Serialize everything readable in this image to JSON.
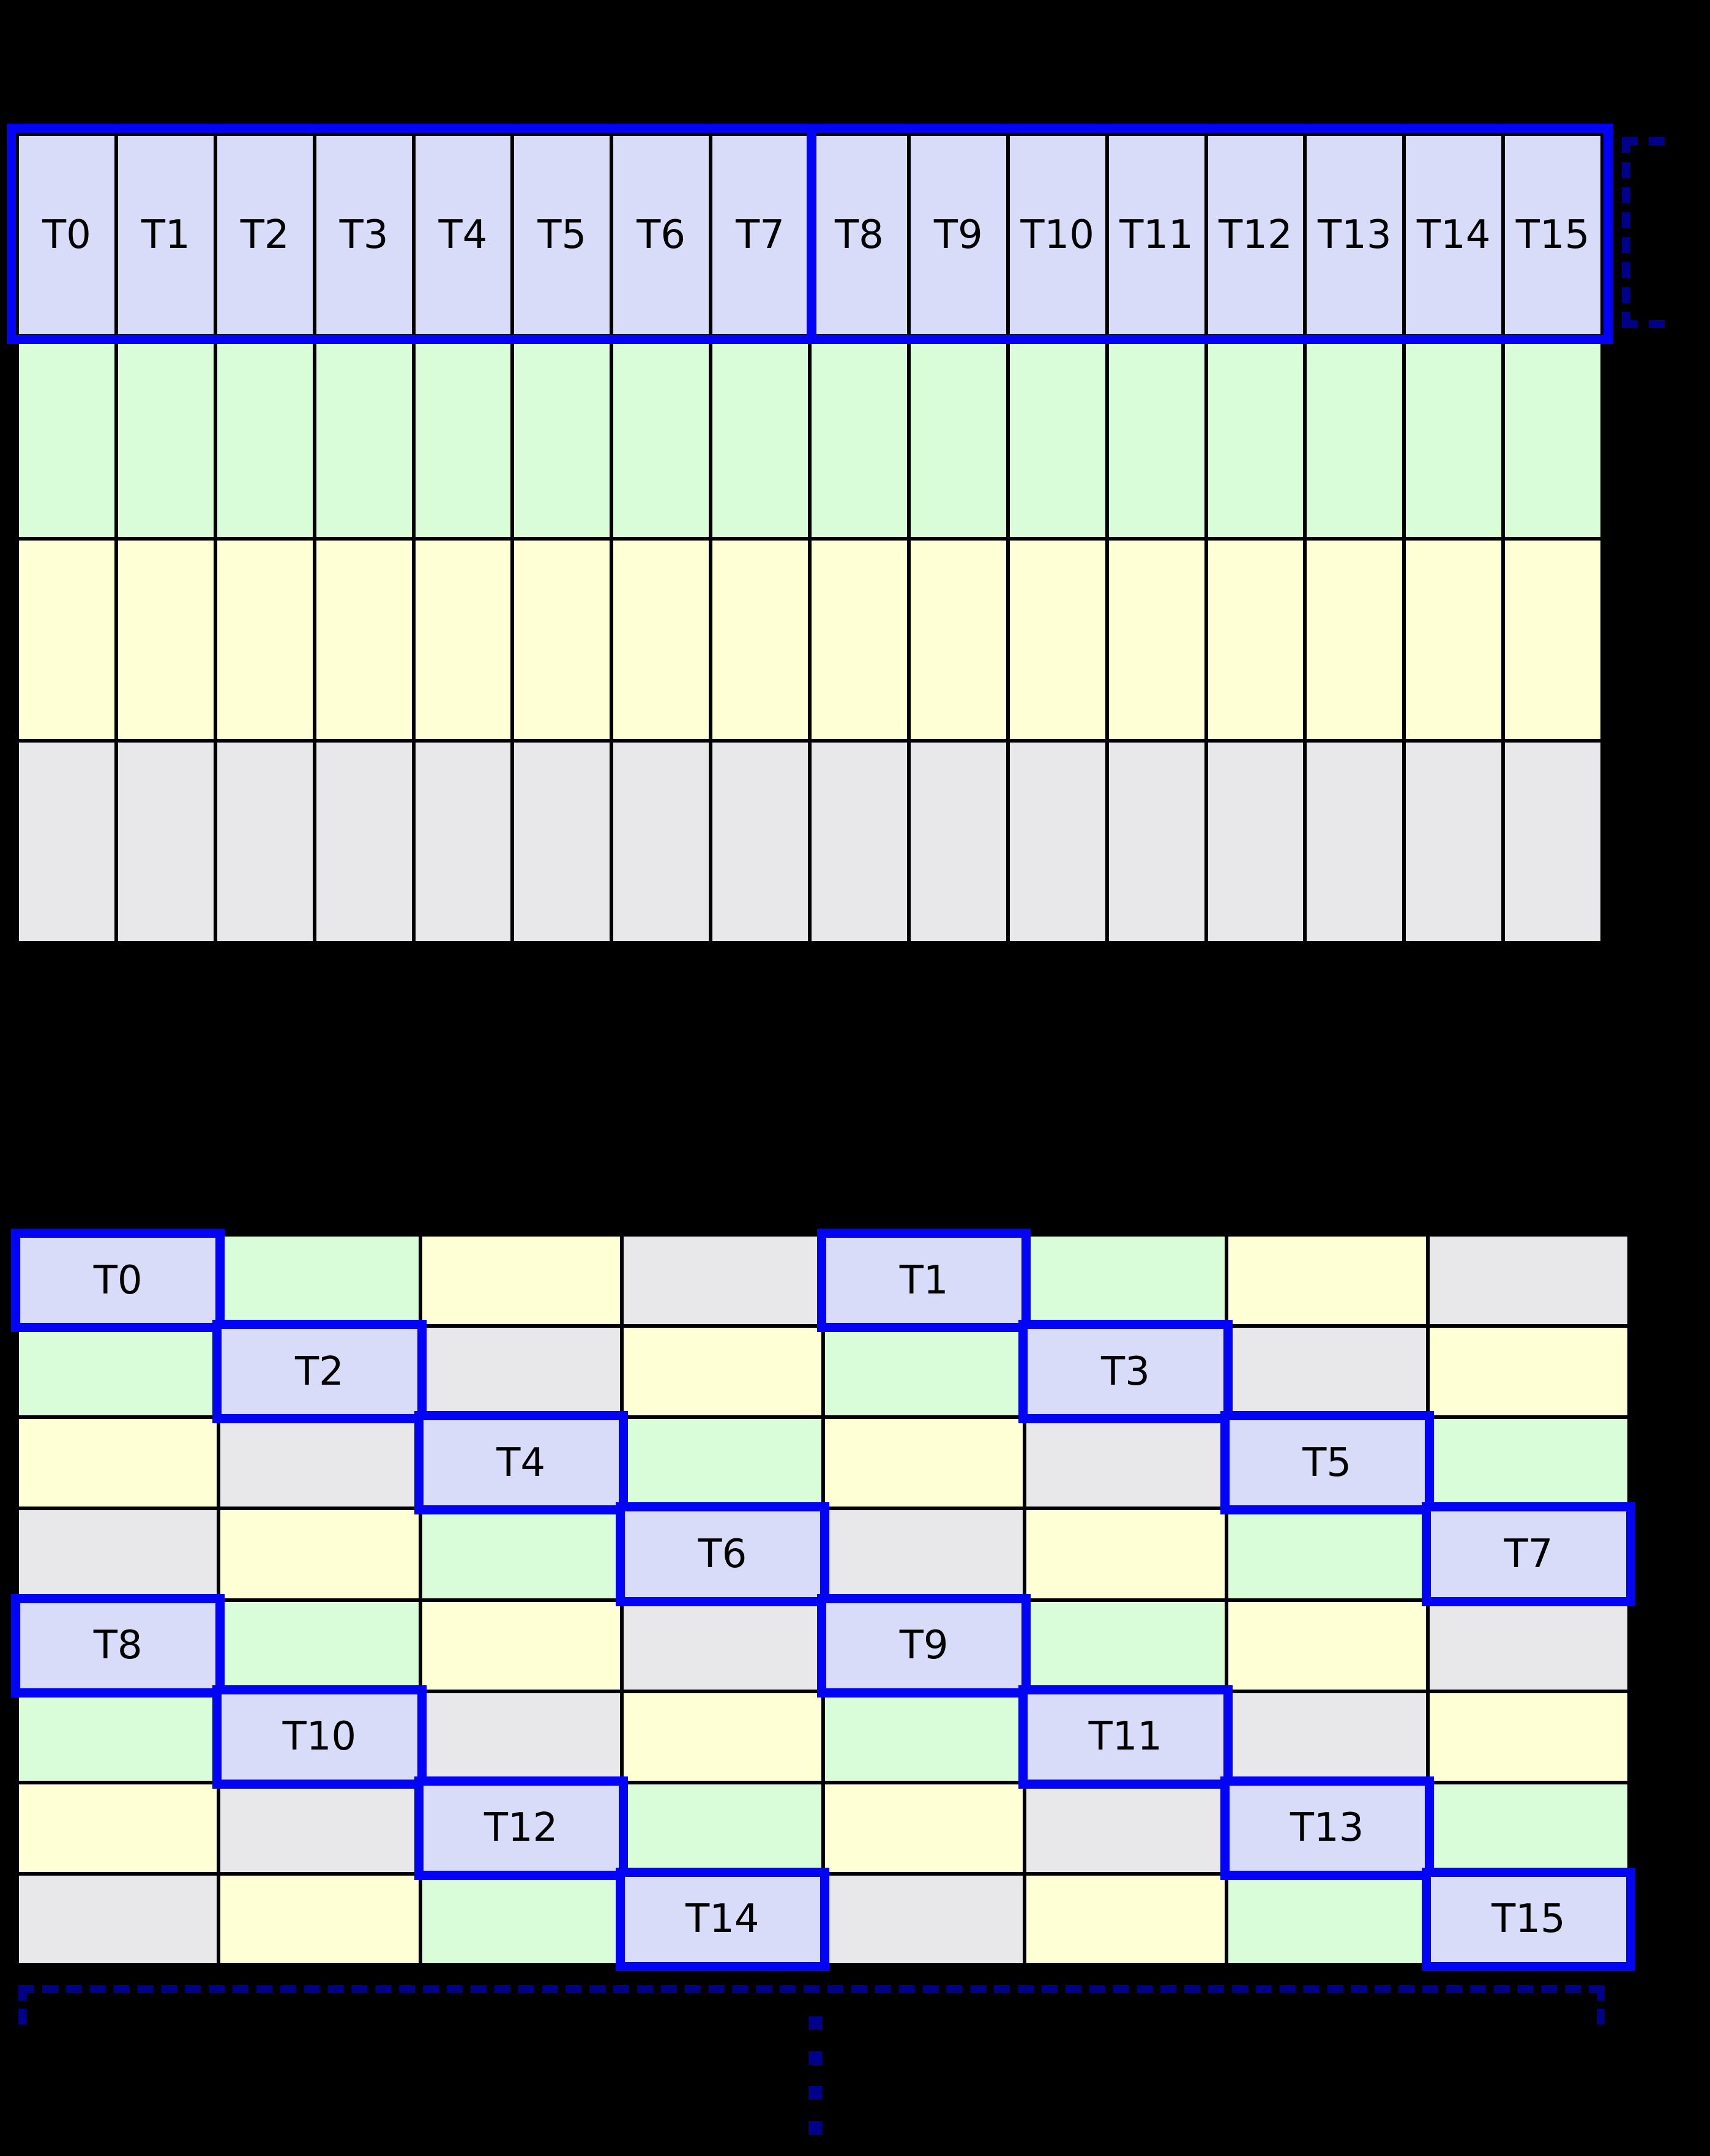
{
  "background": "#000000",
  "colors": {
    "lavender": "#d8dcf8",
    "green": "#d9fcd9",
    "yellow": "#ffffd6",
    "gray": "#e8e8ea",
    "highlight_blue": "#0404f5",
    "bracket_navy": "#00008b",
    "grid_line": "#000000",
    "label_text": "#000000"
  },
  "top_grid": {
    "num_columns": 16,
    "num_rows": 4,
    "thread_labels": [
      "T0",
      "T1",
      "T2",
      "T3",
      "T4",
      "T5",
      "T6",
      "T7",
      "T8",
      "T9",
      "T10",
      "T11",
      "T12",
      "T13",
      "T14",
      "T15"
    ],
    "row_colors": [
      "thread",
      "green",
      "yellow",
      "gray"
    ],
    "has_blue_outline_on_thread_row": true,
    "blue_divider_between": [
      "T7",
      "T8"
    ]
  },
  "right_bracket": {
    "style": "dashed",
    "side": "right-of-thread-row"
  },
  "bottom_grid": {
    "num_columns": 8,
    "num_rows": 8,
    "rows": [
      [
        {
          "color": "thread",
          "label": "T0"
        },
        {
          "color": "green"
        },
        {
          "color": "yellow"
        },
        {
          "color": "gray"
        },
        {
          "color": "thread",
          "label": "T1"
        },
        {
          "color": "green"
        },
        {
          "color": "yellow"
        },
        {
          "color": "gray"
        }
      ],
      [
        {
          "color": "green"
        },
        {
          "color": "thread",
          "label": "T2"
        },
        {
          "color": "gray"
        },
        {
          "color": "yellow"
        },
        {
          "color": "green"
        },
        {
          "color": "thread",
          "label": "T3"
        },
        {
          "color": "gray"
        },
        {
          "color": "yellow"
        }
      ],
      [
        {
          "color": "yellow"
        },
        {
          "color": "gray"
        },
        {
          "color": "thread",
          "label": "T4"
        },
        {
          "color": "green"
        },
        {
          "color": "yellow"
        },
        {
          "color": "gray"
        },
        {
          "color": "thread",
          "label": "T5"
        },
        {
          "color": "green"
        }
      ],
      [
        {
          "color": "gray"
        },
        {
          "color": "yellow"
        },
        {
          "color": "green"
        },
        {
          "color": "thread",
          "label": "T6"
        },
        {
          "color": "gray"
        },
        {
          "color": "yellow"
        },
        {
          "color": "green"
        },
        {
          "color": "thread",
          "label": "T7"
        }
      ],
      [
        {
          "color": "thread",
          "label": "T8"
        },
        {
          "color": "green"
        },
        {
          "color": "yellow"
        },
        {
          "color": "gray"
        },
        {
          "color": "thread",
          "label": "T9"
        },
        {
          "color": "green"
        },
        {
          "color": "yellow"
        },
        {
          "color": "gray"
        }
      ],
      [
        {
          "color": "green"
        },
        {
          "color": "thread",
          "label": "T10"
        },
        {
          "color": "gray"
        },
        {
          "color": "yellow"
        },
        {
          "color": "green"
        },
        {
          "color": "thread",
          "label": "T11"
        },
        {
          "color": "gray"
        },
        {
          "color": "yellow"
        }
      ],
      [
        {
          "color": "yellow"
        },
        {
          "color": "gray"
        },
        {
          "color": "thread",
          "label": "T12"
        },
        {
          "color": "green"
        },
        {
          "color": "yellow"
        },
        {
          "color": "gray"
        },
        {
          "color": "thread",
          "label": "T13"
        },
        {
          "color": "green"
        }
      ],
      [
        {
          "color": "gray"
        },
        {
          "color": "yellow"
        },
        {
          "color": "green"
        },
        {
          "color": "thread",
          "label": "T14"
        },
        {
          "color": "gray"
        },
        {
          "color": "yellow"
        },
        {
          "color": "green"
        },
        {
          "color": "thread",
          "label": "T15"
        }
      ]
    ]
  },
  "bottom_bracket": {
    "style": "dashed",
    "side": "below-bottom-grid"
  },
  "ellipsis_dots": {
    "count": 4,
    "orientation": "vertical"
  }
}
